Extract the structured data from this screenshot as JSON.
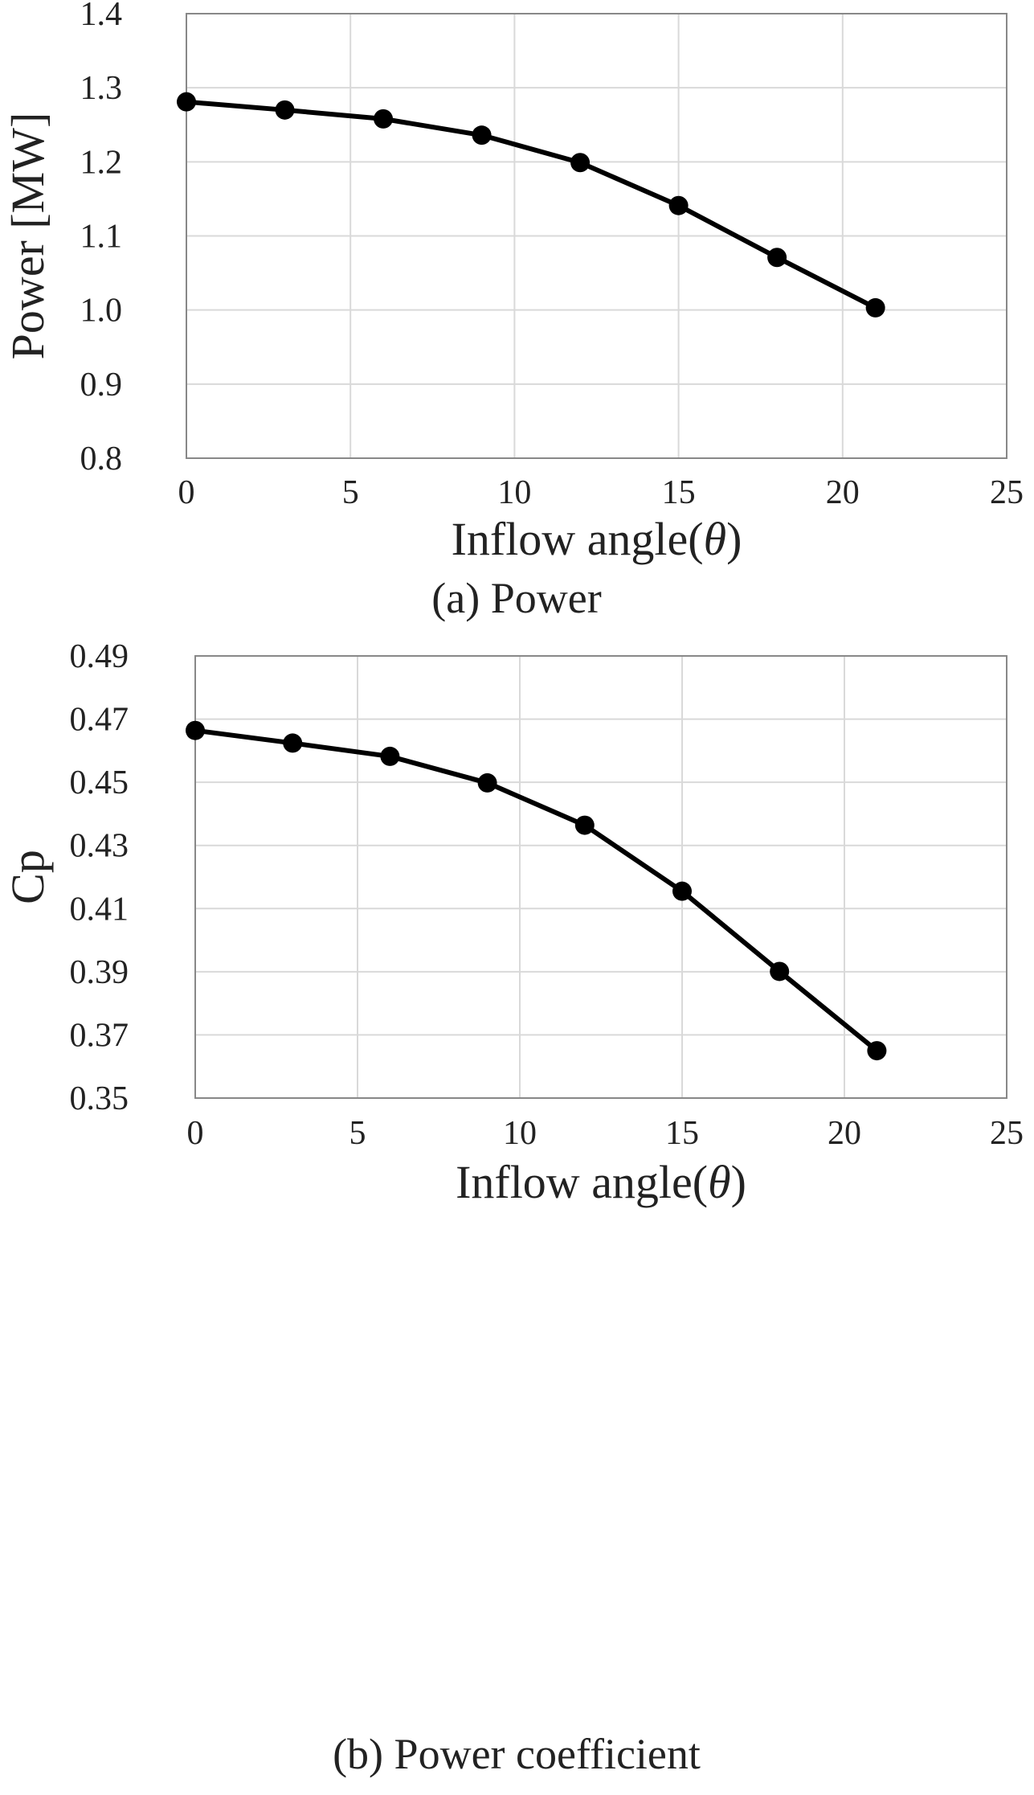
{
  "chart_data": [
    {
      "id": "power",
      "type": "line",
      "title": "",
      "caption": "(a) Power",
      "xlabel_prefix": "Inflow angle(",
      "xlabel_symbol": "θ",
      "xlabel_suffix": ")",
      "ylabel": "Power [MW]",
      "xlim": [
        0,
        25
      ],
      "ylim": [
        0.8,
        1.4
      ],
      "x_ticks": [
        0,
        5,
        10,
        15,
        20,
        25
      ],
      "y_ticks": [
        0.8,
        0.9,
        1.0,
        1.1,
        1.2,
        1.3,
        1.4
      ],
      "y_tick_labels": [
        "0.8",
        "0.9",
        "1.0",
        "1.1",
        "1.2",
        "1.3",
        "1.4"
      ],
      "grid": true,
      "series": [
        {
          "name": "Power",
          "x": [
            0,
            3,
            6,
            9,
            12,
            15,
            18,
            21
          ],
          "values": [
            1.281,
            1.27,
            1.258,
            1.236,
            1.199,
            1.141,
            1.071,
            1.003
          ]
        }
      ]
    },
    {
      "id": "cp",
      "type": "line",
      "title": "",
      "caption": "(b) Power coefficient",
      "xlabel_prefix": "Inflow angle(",
      "xlabel_symbol": "θ",
      "xlabel_suffix": ")",
      "ylabel": "Cp",
      "xlim": [
        0,
        25
      ],
      "ylim": [
        0.35,
        0.49
      ],
      "x_ticks": [
        0,
        5,
        10,
        15,
        20,
        25
      ],
      "y_ticks": [
        0.35,
        0.37,
        0.39,
        0.41,
        0.43,
        0.45,
        0.47,
        0.49
      ],
      "y_tick_labels": [
        "0.35",
        "0.37",
        "0.39",
        "0.41",
        "0.43",
        "0.45",
        "0.47",
        "0.49"
      ],
      "grid": true,
      "series": [
        {
          "name": "Cp",
          "x": [
            0,
            3,
            6,
            9,
            12,
            15,
            18,
            21
          ],
          "values": [
            0.4664,
            0.4624,
            0.4582,
            0.4498,
            0.4364,
            0.4155,
            0.3901,
            0.365
          ]
        }
      ]
    }
  ]
}
